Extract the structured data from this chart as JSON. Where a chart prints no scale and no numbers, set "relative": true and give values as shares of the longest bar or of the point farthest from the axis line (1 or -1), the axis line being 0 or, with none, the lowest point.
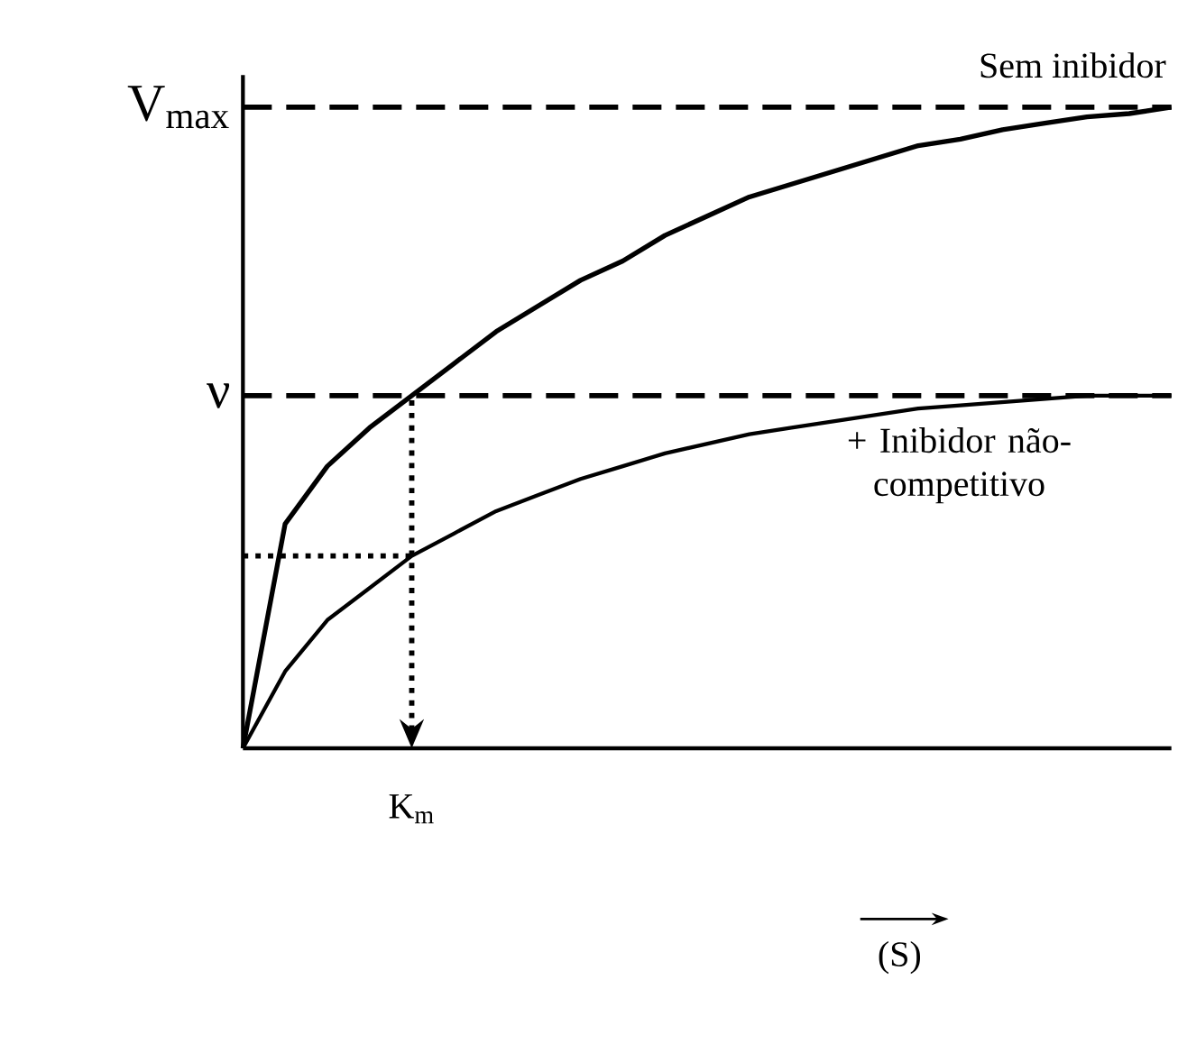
{
  "chart_data": {
    "type": "line",
    "relative": true,
    "annotations": [
      "K$_{m}$",
      "(S)"
    ],
    "categories": [
      null,
      null,
      null,
      null,
      null,
      null,
      null,
      null,
      null,
      null,
      null,
      null,
      null,
      null,
      null,
      null,
      null,
      null,
      null,
      null,
      null,
      null,
      null
    ],
    "series": [
      {
        "name": "Sem inibidor",
        "color": "#000000",
        "values": [
          0,
          0.35,
          0.44,
          0.5,
          0.55,
          0.6,
          0.65,
          0.69,
          0.73,
          0.76,
          0.8,
          0.83,
          0.86,
          0.88,
          0.9,
          0.92,
          0.94,
          0.95,
          0.965,
          0.975,
          0.985,
          0.99,
          1
        ]
      },
      {
        "name": "+ Inibidor não-competitivo",
        "color": "#000000",
        "values": [
          0,
          0.12,
          0.2,
          0.25,
          0.3,
          0.335,
          0.37,
          0.395,
          0.42,
          0.44,
          0.46,
          0.475,
          0.49,
          0.5,
          0.51,
          0.52,
          0.53,
          0.535,
          0.54,
          0.545,
          0.55,
          0.55,
          0.55
        ]
      }
    ],
    "ref_lines": [
      {
        "axis": "y",
        "value": 1,
        "label": "V$_{max}$",
        "line_style": "dashed"
      },
      {
        "axis": "y",
        "value": 0.55,
        "label": "ν",
        "line_style": "dashed"
      },
      {
        "axis": "y",
        "value": 0.3,
        "line_style": "dotted"
      }
    ]
  }
}
